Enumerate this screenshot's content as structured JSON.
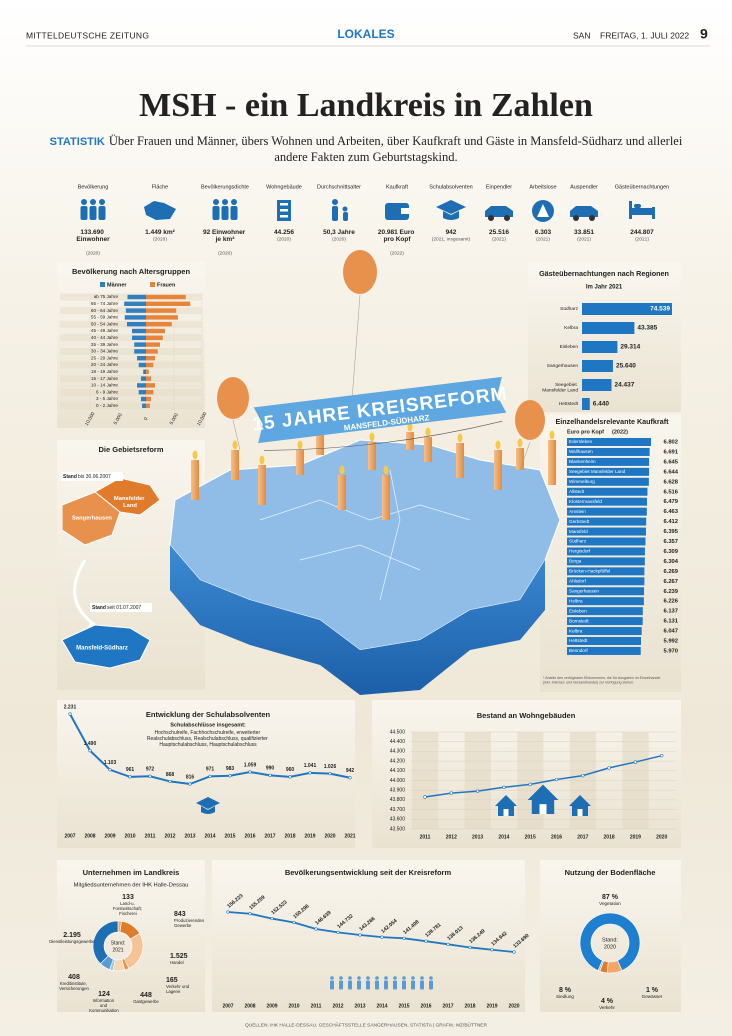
{
  "header": {
    "paper": "MITTELDEUTSCHE ZEITUNG",
    "section": "LOKALES",
    "place": "SAN",
    "date": "FREITAG, 1. JULI 2022",
    "page": "9"
  },
  "title": "MSH - ein Landkreis in Zahlen",
  "intro": {
    "tag": "STATISTIK",
    "text": "Über Frauen und Männer, übers Wohnen und Arbeiten, über Kaufkraft und Gäste in Mansfeld-Südharz und allerlei andere Fakten zum Geburtstagskind."
  },
  "facts": [
    {
      "label": "Bevölkerung",
      "value": "133.690 Einwohner",
      "year": "(2020)"
    },
    {
      "label": "Fläche",
      "value": "1.449 km²",
      "year": "(2020)"
    },
    {
      "label": "Bevölkerungsdichte",
      "value": "92 Einwohner je km²",
      "year": "(2020)"
    },
    {
      "label": "Wohngebäude",
      "value": "44.256",
      "year": "(2020)"
    },
    {
      "label": "Durchschnittsalter",
      "value": "50,3 Jahre",
      "year": "(2020)"
    },
    {
      "label": "Kaufkraft",
      "value": "20.981 Euro pro Kopf",
      "year": "(2022)"
    },
    {
      "label": "Schulabsolventen",
      "value": "942",
      "year": "(2021, insgesamt)"
    },
    {
      "label": "Einpendler",
      "value": "25.516",
      "year": "(2021)"
    },
    {
      "label": "Arbeitslose",
      "value": "6.303",
      "year": "(2021)"
    },
    {
      "label": "Auspendler",
      "value": "33.851",
      "year": "(2021)"
    },
    {
      "label": "Gästeübernachtungen",
      "value": "244.807",
      "year": "(2021)"
    }
  ],
  "age": {
    "title": "Bevölkerung nach Altersgruppen",
    "legend": [
      "Männer",
      "Frauen"
    ],
    "groups": [
      "ab 75 Jahre",
      "65 - 74 Jahre",
      "60 - 64 Jahre",
      "55 - 59 Jahre",
      "50 - 54 Jahre",
      "45 - 49 Jahre",
      "40 - 44 Jahre",
      "35 - 39 Jahre",
      "30 - 34 Jahre",
      "25 - 29 Jahre",
      "20 - 24 Jahre",
      "18 - 19 Jahre",
      "15 - 17 Jahre",
      "10 - 14 Jahre",
      "6 - 9 Jahre",
      "3 - 5 Jahre",
      "0 - 2 Jahre"
    ],
    "men": [
      3300,
      3900,
      3600,
      3800,
      3400,
      2500,
      2500,
      2100,
      2100,
      1600,
      1300,
      500,
      900,
      1600,
      1300,
      900,
      700
    ],
    "women": [
      7100,
      7900,
      5400,
      5700,
      4600,
      3400,
      3000,
      2500,
      2100,
      1600,
      1300,
      500,
      900,
      1600,
      1300,
      900,
      700
    ],
    "xlim": [
      -10000,
      10000
    ],
    "xticks": [
      {
        "value": -10000,
        "label": "10.000"
      },
      {
        "value": -5000,
        "label": "5.000"
      },
      0,
      {
        "value": 5000,
        "label": "5.000"
      },
      {
        "value": 10000,
        "label": "10.000"
      }
    ],
    "colors": [
      "#2f7fc1",
      "#e8843a"
    ]
  },
  "guests": {
    "title": "Gästeübernachtungen nach Regionen",
    "subtitle": "Im Jahr 2021",
    "regions": [
      "Südharz",
      "Kelbra",
      "Eisleben",
      "Sangerhausen",
      "Seegebiet Mansfelder Land",
      "Hettstedt"
    ],
    "values": [
      74539,
      43385,
      29314,
      25640,
      24437,
      6440
    ],
    "value_labels": [
      "74.539",
      "43.385",
      "29.314",
      "25.640",
      "24.437",
      "6.440"
    ],
    "color": "#1f77c4"
  },
  "reform": {
    "title": "Die Gebietsreform",
    "stand": "Stand",
    "before": "bis 30.06.2007",
    "old": [
      "Mansfelder Land",
      "Sangerhausen"
    ],
    "after": "seit 01.07.2007",
    "new": "Mansfeld-Südharz"
  },
  "banner": {
    "title": "15 JAHRE KREISREFORM",
    "subtitle": "MANSFELD-SÜDHARZ"
  },
  "purchasing": {
    "title": "Einzelhandelsrelevante Kaufkraft",
    "subtitle": "Euro pro Kopf",
    "year": "(2022)",
    "places": [
      "Edersleben",
      "Wallhausen",
      "Blankenheim",
      "Seegebiet Mansfelder Land",
      "Wimmelburg",
      "Allstedt",
      "Klostermansfeld",
      "Arnstein",
      "Gerbstedt",
      "Mansfeld",
      "Südharz",
      "Hergisdorf",
      "Berga",
      "Brücken-Hackpfüffel",
      "Ahlsdorf",
      "Sangerhausen",
      "Helbra",
      "Eisleben",
      "Bornstedt",
      "Kelbra",
      "Hettstedt",
      "Benndorf"
    ],
    "values": [
      6802,
      6691,
      6645,
      6644,
      6628,
      6516,
      6479,
      6463,
      6412,
      6395,
      6357,
      6309,
      6304,
      6269,
      6267,
      6239,
      6226,
      6137,
      6131,
      6047,
      5992,
      5970
    ],
    "value_labels": [
      "6.802",
      "6.691",
      "6.645",
      "6.644",
      "6.628",
      "6.516",
      "6.479",
      "6.463",
      "6.412",
      "6.395",
      "6.357",
      "6.309",
      "6.304",
      "6.269",
      "6.267",
      "6.239",
      "6.226",
      "6.137",
      "6.131",
      "6.047",
      "5.992",
      "5.970"
    ],
    "note": "* Anteile des verfügbaren Einkommens, die für Ausgaben im Einzelhandel (inkl. Internet- und Versandhandel) zur Verfügung stehen.",
    "color": "#1f77c4"
  },
  "school": {
    "title": "Entwicklung der Schulabsolventen",
    "subtitle": "Schulabschlüsse insgesamt:",
    "note": "Hochschulreife, Fachhochschulreife, erweiterter Realschulabschluss, Realschulabschluss, qualifizierter Hauptschulabschluss, Hauptschulabschluss",
    "years": [
      "2007",
      "2008",
      "2009",
      "2010",
      "2011",
      "2012",
      "2013",
      "2014",
      "2015",
      "2016",
      "2017",
      "2018",
      "2019",
      "2020",
      "2021"
    ],
    "values": [
      2231,
      1490,
      1103,
      961,
      972,
      868,
      816,
      971,
      983,
      1059,
      990,
      960,
      1041,
      1026,
      942
    ],
    "value_labels": [
      "2.231",
      "1.490",
      "1.103",
      "961",
      "972",
      "868",
      "816",
      "971",
      "983",
      "1.059",
      "990",
      "960",
      "1.041",
      "1.026",
      "942"
    ],
    "color": "#1f77c4"
  },
  "housing": {
    "title": "Bestand an Wohngebäuden",
    "years": [
      "2011",
      "2012",
      "2013",
      "2014",
      "2015",
      "2016",
      "2017",
      "2018",
      "2019",
      "2020"
    ],
    "values": [
      43830,
      43870,
      43890,
      43930,
      43960,
      44010,
      44050,
      44130,
      44190,
      44256
    ],
    "ylim": [
      43500,
      44500
    ],
    "yticks": [
      {
        "value": 43500,
        "label": "43.500"
      },
      {
        "value": 43600,
        "label": "43.600"
      },
      {
        "value": 43700,
        "label": "43.700"
      },
      {
        "value": 43800,
        "label": "43.800"
      },
      {
        "value": 43900,
        "label": "43.900"
      },
      {
        "value": 44000,
        "label": "44.000"
      },
      {
        "value": 44100,
        "label": "44.100"
      },
      {
        "value": 44200,
        "label": "44.200"
      },
      {
        "value": 44300,
        "label": "44.300"
      },
      {
        "value": 44400,
        "label": "44.400"
      },
      {
        "value": 44500,
        "label": "44.500"
      }
    ],
    "color": "#1f77c4"
  },
  "companies": {
    "title": "Unternehmen im Landkreis",
    "subtitle": "Mitgliedsunternehmen der IHK Halle-Dessau",
    "center": [
      "Stand:",
      "2021"
    ],
    "sectors": [
      "Land-u. Forstwirtschaft; Fischerei",
      "Produzierendes Gewerbe",
      "Handel",
      "Verkehr und Lagerei",
      "Gastgewerbe",
      "Information und Kommunikation",
      "Kreditinstitute, Versicherungen",
      "Dienstleistungsgewerbe"
    ],
    "values": [
      133,
      843,
      1525,
      165,
      448,
      124,
      408,
      2195
    ],
    "value_labels": [
      "133",
      "843",
      "1.525",
      "165",
      "448",
      "124",
      "408",
      "2.195"
    ],
    "colors": [
      "#f0a86a",
      "#e07b2c",
      "#f5c394",
      "#e8914c",
      "#f8d7b5",
      "#9cc3e6",
      "#5a9bd5",
      "#1e6eb4"
    ]
  },
  "population": {
    "title": "Bevölkerungsentwicklung seit der Kreisreform",
    "years": [
      "2007",
      "2008",
      "2009",
      "2010",
      "2011",
      "2012",
      "2013",
      "2014",
      "2015",
      "2016",
      "2017",
      "2018",
      "2019",
      "2020"
    ],
    "values": [
      156223,
      155259,
      152523,
      150296,
      146639,
      144732,
      143266,
      142054,
      141408,
      139781,
      138013,
      136249,
      134942,
      133690
    ],
    "value_labels": [
      "156.223",
      "155.259",
      "152.523",
      "150.296",
      "146.639",
      "144.732",
      "143.266",
      "142.054",
      "141.408",
      "139.781",
      "138.013",
      "136.249",
      "134.942",
      "133.690"
    ],
    "color": "#1f77c4"
  },
  "land": {
    "title": "Nutzung der Bodenfläche",
    "center": [
      "Stand:",
      "2020"
    ],
    "uses": [
      "Vegetation",
      "Siedlung",
      "Verkehr",
      "Gewässer"
    ],
    "values": [
      87,
      8,
      4,
      1
    ],
    "value_labels": [
      "87 %",
      "8 %",
      "4 %",
      "1 %"
    ],
    "colors": [
      "#1e7fd0",
      "#f0a86a",
      "#e07b2c",
      "#9cc3e6"
    ]
  },
  "footer": "QUELLEN: IHK HALLE-DESSAU, GESCHÄFTSSTELLE SANGERHAUSEN, STATISTA | GRAFIK: MZ/BÜTTNER"
}
